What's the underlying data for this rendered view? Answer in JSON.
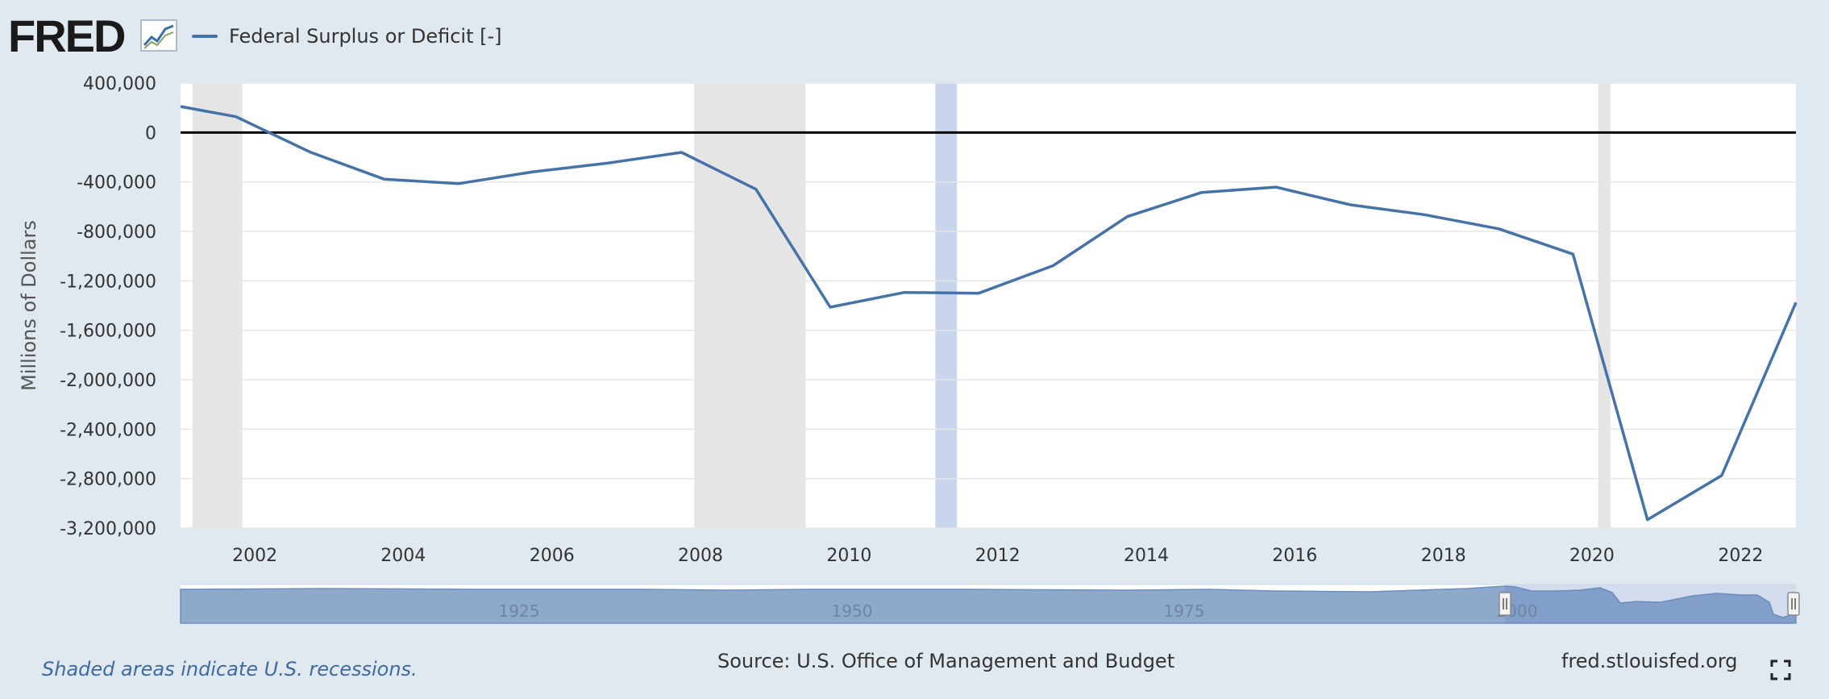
{
  "header": {
    "logo": "FRED",
    "legend_label": "Federal Surplus or Deficit [-]"
  },
  "chart_data": {
    "type": "line",
    "ylabel": "Millions of Dollars",
    "ylim": [
      -3200000,
      400000
    ],
    "yticks": [
      400000,
      0,
      -400000,
      -800000,
      -1200000,
      -1600000,
      -2000000,
      -2400000,
      -2800000,
      -3200000
    ],
    "ytick_labels": [
      "400,000",
      "0",
      "-400,000",
      "-800,000",
      "-1,200,000",
      "-1,600,000",
      "-2,000,000",
      "-2,400,000",
      "-2,800,000",
      "-3,200,000"
    ],
    "xlim": [
      "2001-01-01",
      "2022-09-30"
    ],
    "xticks": [
      "2002-01-01",
      "2004-01-01",
      "2006-01-01",
      "2008-01-01",
      "2010-01-01",
      "2012-01-01",
      "2014-01-01",
      "2016-01-01",
      "2018-01-01",
      "2020-01-01",
      "2022-01-01"
    ],
    "xtick_labels": [
      "2002",
      "2004",
      "2006",
      "2008",
      "2010",
      "2012",
      "2014",
      "2016",
      "2018",
      "2020",
      "2022"
    ],
    "series": [
      {
        "name": "Federal Surplus or Deficit [-]",
        "color": "#4572a7",
        "points": [
          {
            "x": "2001-01-01",
            "y": 210000
          },
          {
            "x": "2001-09-30",
            "y": 128000
          },
          {
            "x": "2002-09-30",
            "y": -158000
          },
          {
            "x": "2003-09-30",
            "y": -378000
          },
          {
            "x": "2004-09-30",
            "y": -413000
          },
          {
            "x": "2005-09-30",
            "y": -318000
          },
          {
            "x": "2006-09-30",
            "y": -248000
          },
          {
            "x": "2007-09-30",
            "y": -161000
          },
          {
            "x": "2008-09-30",
            "y": -459000
          },
          {
            "x": "2009-09-30",
            "y": -1413000
          },
          {
            "x": "2010-09-30",
            "y": -1294000
          },
          {
            "x": "2011-09-30",
            "y": -1300000
          },
          {
            "x": "2012-09-30",
            "y": -1077000
          },
          {
            "x": "2013-09-30",
            "y": -680000
          },
          {
            "x": "2014-09-30",
            "y": -485000
          },
          {
            "x": "2015-09-30",
            "y": -442000
          },
          {
            "x": "2016-09-30",
            "y": -585000
          },
          {
            "x": "2017-09-30",
            "y": -665000
          },
          {
            "x": "2018-09-30",
            "y": -779000
          },
          {
            "x": "2019-09-30",
            "y": -984000
          },
          {
            "x": "2020-09-30",
            "y": -3132000
          },
          {
            "x": "2021-09-30",
            "y": -2775000
          },
          {
            "x": "2022-09-30",
            "y": -1375000
          }
        ]
      }
    ],
    "recessions": [
      {
        "start": "2001-03-01",
        "end": "2001-11-01"
      },
      {
        "start": "2007-12-01",
        "end": "2009-06-01"
      },
      {
        "start": "2020-02-01",
        "end": "2020-04-01"
      }
    ],
    "highlight_band": {
      "start": "2011-03-01",
      "end": "2011-06-15",
      "color": "#c9d5ec"
    },
    "navigator": {
      "tick_labels": [
        "1925",
        "1950",
        "1975",
        "2000"
      ]
    }
  },
  "footer": {
    "note": "Shaded areas indicate U.S. recessions.",
    "source": "Source: U.S. Office of Management and Budget",
    "url": "fred.stlouisfed.org"
  },
  "icons": {
    "logo_graph": "line-graph-icon",
    "fullscreen": "fullscreen-icon"
  }
}
